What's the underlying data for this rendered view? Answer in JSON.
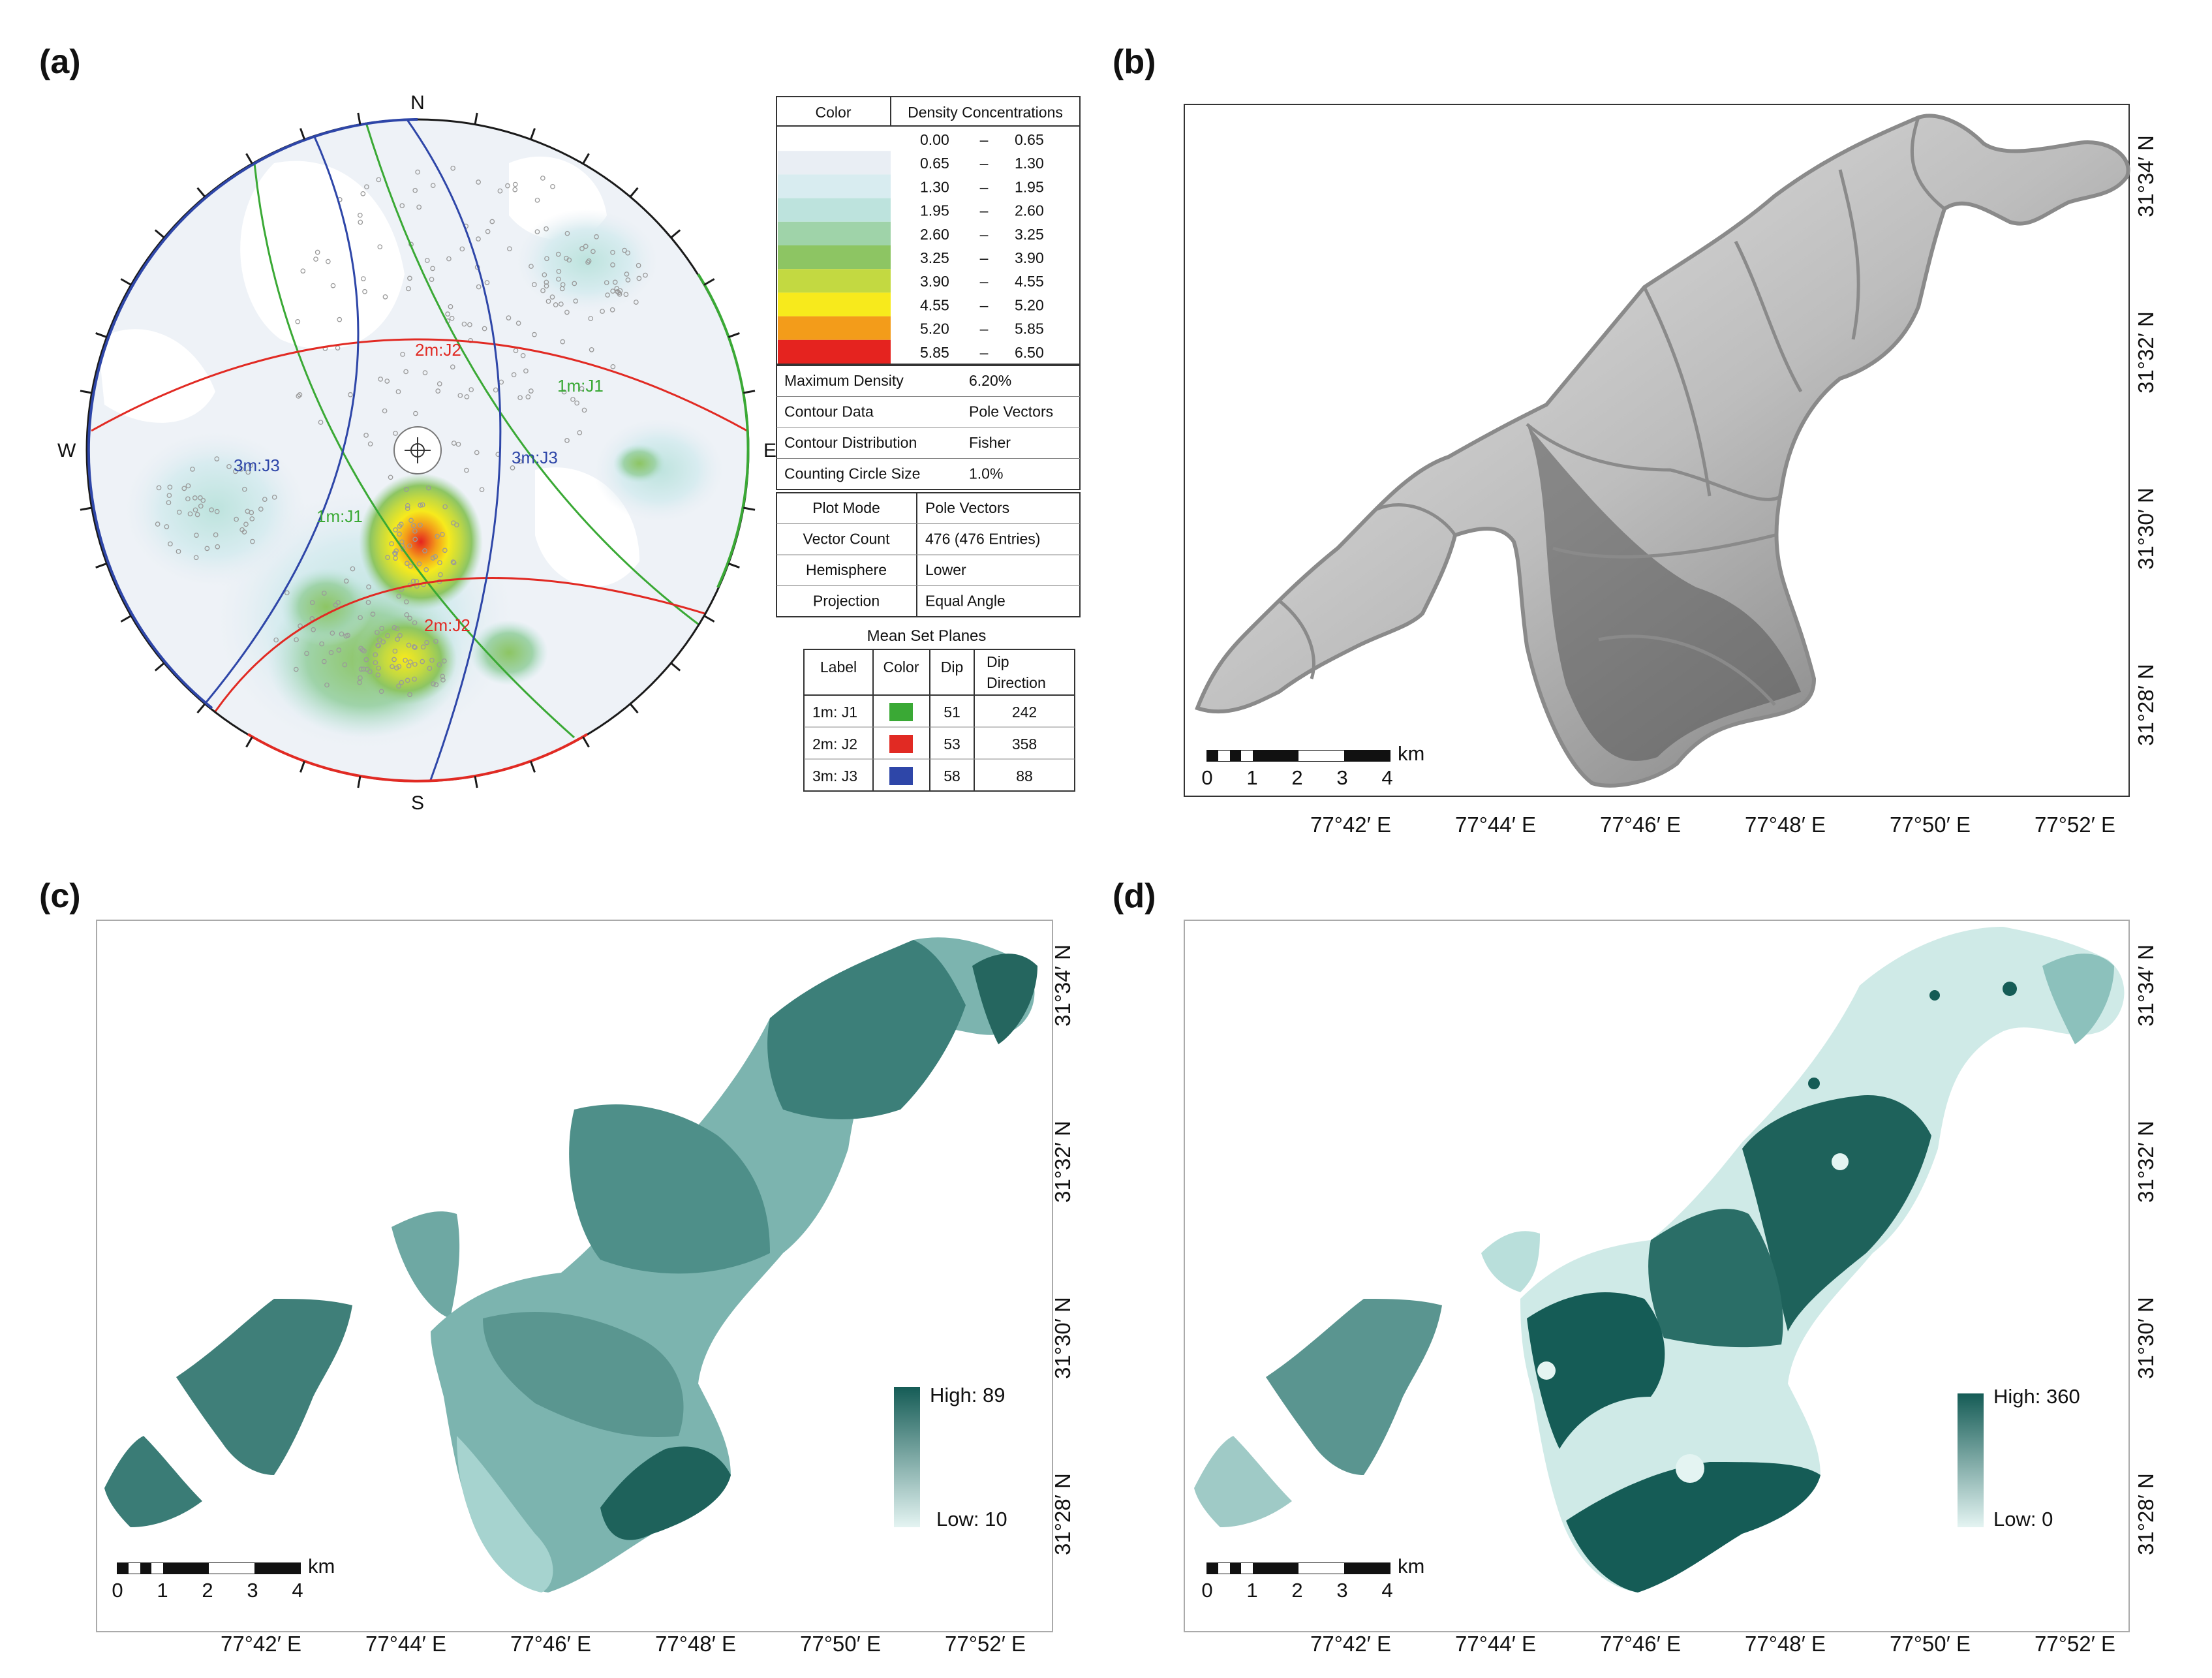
{
  "panels": {
    "a": {
      "label": "(a)",
      "compass": {
        "n": "N",
        "s": "S",
        "e": "E",
        "w": "W"
      },
      "set_labels": {
        "j1_primary": "1m:J1",
        "j1_secondary": "1m:J1",
        "j2_primary": "2m:J2",
        "j2_secondary": "2m:J2",
        "j3_west": "3m:J3",
        "j3_east": "3m:J3"
      },
      "colors": {
        "j1": "#3aa935",
        "j2": "#e12a23",
        "j3": "#2e46a8",
        "frame": "#1a1a1a"
      },
      "legend": {
        "header_color": "Color",
        "header_density": "Density Concentrations",
        "dash": "–",
        "rows": [
          {
            "color": "#ffffff",
            "from": "0.00",
            "to": "0.65"
          },
          {
            "color": "#e9eef4",
            "from": "0.65",
            "to": "1.30"
          },
          {
            "color": "#d8ecf0",
            "from": "1.30",
            "to": "1.95"
          },
          {
            "color": "#bde3dd",
            "from": "1.95",
            "to": "2.60"
          },
          {
            "color": "#9fd3a9",
            "from": "2.60",
            "to": "3.25"
          },
          {
            "color": "#8dc563",
            "from": "3.25",
            "to": "3.90"
          },
          {
            "color": "#c3d941",
            "from": "3.90",
            "to": "4.55"
          },
          {
            "color": "#f7ea1c",
            "from": "4.55",
            "to": "5.20"
          },
          {
            "color": "#f39c1a",
            "from": "5.20",
            "to": "5.85"
          },
          {
            "color": "#e5231f",
            "from": "5.85",
            "to": "6.50"
          }
        ]
      },
      "stats": [
        {
          "label": "Maximum Density",
          "value": "6.20%"
        },
        {
          "label": "Contour Data",
          "value": "Pole Vectors"
        },
        {
          "label": "Contour Distribution",
          "value": "Fisher"
        },
        {
          "label": "Counting Circle Size",
          "value": "1.0%"
        }
      ],
      "plot_info": [
        {
          "label": "Plot Mode",
          "value": "Pole Vectors"
        },
        {
          "label": "Vector Count",
          "value": "476 (476 Entries)"
        },
        {
          "label": "Hemisphere",
          "value": "Lower"
        },
        {
          "label": "Projection",
          "value": "Equal Angle"
        }
      ],
      "mean_set_planes": {
        "title": "Mean Set Planes",
        "headers": {
          "label": "Label",
          "color": "Color",
          "dip": "Dip",
          "dipdir_1": "Dip",
          "dipdir_2": "Direction"
        },
        "rows": [
          {
            "label": "1m: J1",
            "color": "#3aa935",
            "dip": "51",
            "dip_direction": "242"
          },
          {
            "label": "2m: J2",
            "color": "#e12a23",
            "dip": "53",
            "dip_direction": "358"
          },
          {
            "label": "3m: J3",
            "color": "#2e46a8",
            "dip": "58",
            "dip_direction": "88"
          }
        ]
      }
    },
    "b": {
      "label": "(b)"
    },
    "c": {
      "label": "(c)",
      "legend_high": "High: 89",
      "legend_low": "Low: 10"
    },
    "d": {
      "label": "(d)",
      "legend_high": "High: 360",
      "legend_low": "Low: 0"
    }
  },
  "map_axes": {
    "lon_labels": [
      "77°42′ E",
      "77°44′ E",
      "77°46′ E",
      "77°48′ E",
      "77°50′ E",
      "77°52′ E"
    ],
    "lat_labels": [
      "31°34′ N",
      "31°32′ N",
      "31°30′ N",
      "31°28′ N"
    ]
  },
  "scalebar": {
    "unit": "km",
    "ticks": [
      "0",
      "1",
      "2",
      "3",
      "4"
    ]
  },
  "colors": {
    "teal_dark": "#155c56",
    "teal_mid": "#4d8e89",
    "teal_light": "#c9e8e5",
    "outline": "#8a8a8a"
  }
}
